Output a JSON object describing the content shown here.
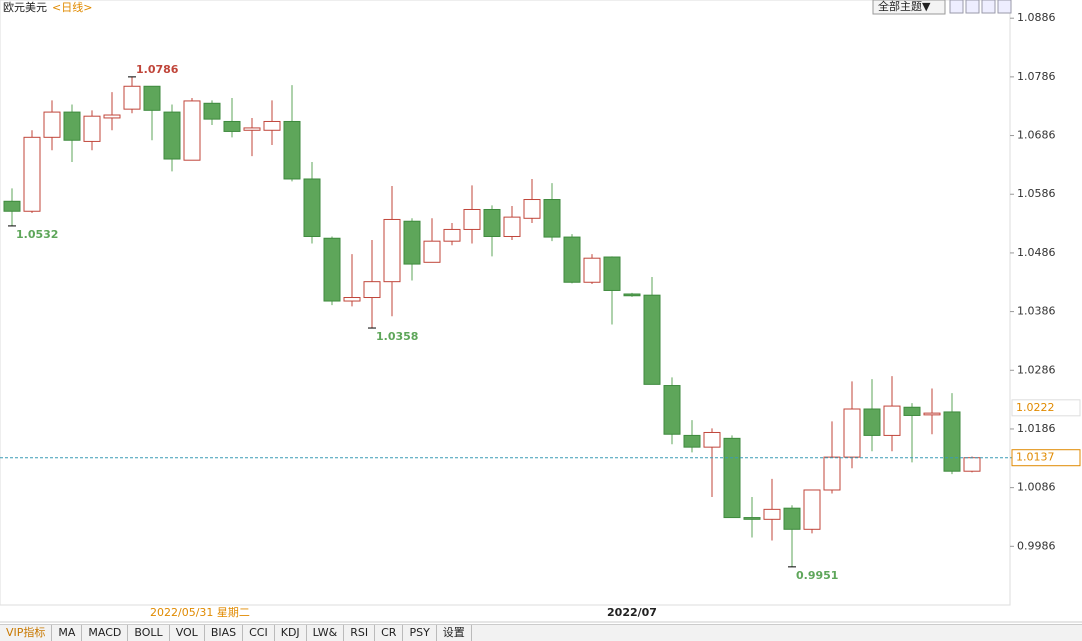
{
  "chart_data": {
    "type": "candlestick",
    "title": "欧元美元",
    "subtitle": "<日线>",
    "open": [
      1.0574,
      1.0557,
      1.0683,
      1.0726,
      1.0676,
      1.0716,
      1.0731,
      1.077,
      1.0726,
      1.0644,
      1.0741,
      1.071,
      1.0695,
      1.0695,
      1.071,
      1.0612,
      1.0511,
      1.0404,
      1.041,
      1.0437,
      1.054,
      1.047,
      1.0506,
      1.0526,
      1.056,
      1.0514,
      1.0545,
      1.0577,
      1.0513,
      1.0436,
      1.0479,
      1.0416,
      1.0414,
      1.026,
      1.0175,
      1.0155,
      1.017,
      1.0035,
      1.0032,
      1.0051,
      1.0015,
      1.0082,
      1.0138,
      1.022,
      1.0175,
      1.0223,
      1.021,
      1.0215,
      1.0114
    ],
    "high": [
      1.0596,
      1.0695,
      1.0746,
      1.0739,
      1.0729,
      1.076,
      1.0786,
      1.077,
      1.0739,
      1.075,
      1.0746,
      1.075,
      1.0716,
      1.0746,
      1.0772,
      1.0641,
      1.0514,
      1.0484,
      1.0508,
      1.06,
      1.0545,
      1.0545,
      1.0537,
      1.0601,
      1.0567,
      1.0566,
      1.0612,
      1.0605,
      1.0518,
      1.0484,
      1.048,
      1.0418,
      1.0445,
      1.0274,
      1.0201,
      1.0187,
      1.0175,
      1.007,
      1.0101,
      1.0056,
      1.0082,
      1.0199,
      1.0267,
      1.0271,
      1.0276,
      1.023,
      1.0255,
      1.0247,
      1.0139
    ],
    "low": [
      1.0532,
      1.0554,
      1.0661,
      1.0641,
      1.0661,
      1.0695,
      1.0724,
      1.0678,
      1.0625,
      1.0644,
      1.0704,
      1.0683,
      1.0651,
      1.067,
      1.0608,
      1.0502,
      1.0397,
      1.0395,
      1.0358,
      1.0378,
      1.0439,
      1.047,
      1.0499,
      1.0502,
      1.048,
      1.0508,
      1.0537,
      1.0506,
      1.0434,
      1.0433,
      1.0364,
      1.0411,
      1.0262,
      1.016,
      1.0146,
      1.007,
      1.0035,
      1.0001,
      0.9996,
      0.9951,
      1.0008,
      1.0076,
      1.0119,
      1.0148,
      1.0148,
      1.0129,
      1.0177,
      1.0109,
      1.0112
    ],
    "close": [
      1.0557,
      1.0683,
      1.0726,
      1.0678,
      1.0719,
      1.0721,
      1.077,
      1.0729,
      1.0646,
      1.0745,
      1.0714,
      1.0693,
      1.0699,
      1.071,
      1.0612,
      1.0514,
      1.0404,
      1.041,
      1.0437,
      1.0543,
      1.0467,
      1.0506,
      1.0526,
      1.056,
      1.0514,
      1.0547,
      1.0577,
      1.0513,
      1.0436,
      1.0477,
      1.0422,
      1.0413,
      1.0262,
      1.0177,
      1.0155,
      1.018,
      1.0035,
      1.0032,
      1.0049,
      1.0015,
      1.0082,
      1.0138,
      1.022,
      1.0175,
      1.0225,
      1.0209,
      1.0213,
      1.0114,
      1.0137
    ],
    "categories": [
      null,
      null,
      null,
      null,
      null,
      null,
      null,
      null,
      null,
      null,
      null,
      null,
      null,
      null,
      null,
      null,
      null,
      null,
      null,
      null,
      null,
      null,
      null,
      null,
      null,
      null,
      null,
      null,
      null,
      null,
      null,
      "2022/07",
      null,
      null,
      null,
      null,
      null,
      null,
      null,
      null,
      null,
      null,
      null,
      null,
      null,
      null,
      null,
      null,
      null
    ],
    "cursor_label": "2022/05/31 星期二",
    "up_color": "#c0453a",
    "down_color": "#5ea65a",
    "annotations": [
      1.0786,
      1.0532,
      1.0358,
      0.9951
    ],
    "price_labels": [
      1.0222,
      1.0137
    ],
    "ylim": [
      0.9886,
      1.0917
    ],
    "yticks": [
      1.0886,
      1.0786,
      1.0686,
      1.0586,
      1.0486,
      1.0386,
      1.0286,
      1.0186,
      1.0086,
      0.9986
    ]
  },
  "toolbar": {
    "theme_button": "全部主题▼"
  },
  "tabs": [
    "VIP指标",
    "MA",
    "MACD",
    "BOLL",
    "VOL",
    "BIAS",
    "CCI",
    "KDJ",
    "LW&",
    "RSI",
    "CR",
    "PSY",
    "设置"
  ]
}
